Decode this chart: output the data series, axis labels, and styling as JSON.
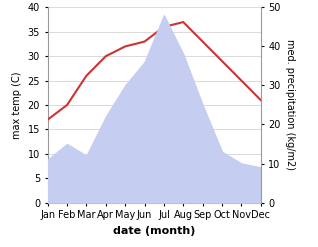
{
  "months": [
    "Jan",
    "Feb",
    "Mar",
    "Apr",
    "May",
    "Jun",
    "Jul",
    "Aug",
    "Sep",
    "Oct",
    "Nov",
    "Dec"
  ],
  "temperature": [
    17,
    20,
    26,
    30,
    32,
    33,
    36,
    37,
    33,
    29,
    25,
    21
  ],
  "precipitation": [
    11,
    15,
    12,
    22,
    30,
    36,
    48,
    38,
    25,
    13,
    10,
    9
  ],
  "temp_color": "#cc3333",
  "precip_fill_color": "#c5cef0",
  "temp_ylim": [
    0,
    40
  ],
  "precip_ylim": [
    0,
    50
  ],
  "xlabel": "date (month)",
  "ylabel_left": "max temp (C)",
  "ylabel_right": "med. precipitation (kg/m2)",
  "grid_color": "#cccccc",
  "tick_fontsize": 7,
  "label_fontsize": 7,
  "xlabel_fontsize": 8
}
